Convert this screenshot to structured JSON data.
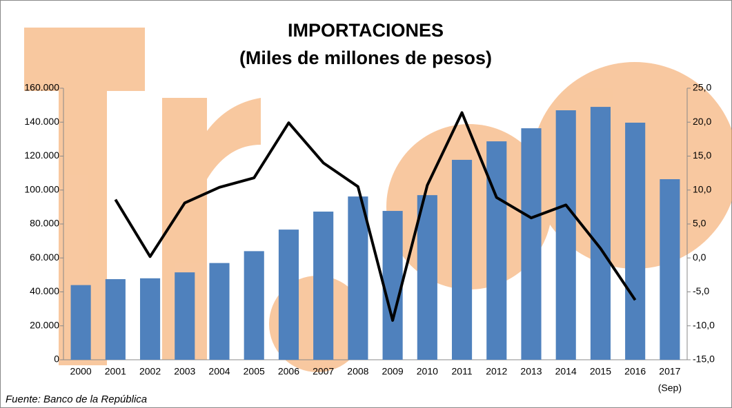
{
  "chart_data": {
    "type": "bar-line",
    "title": "IMPORTACIONES",
    "subtitle": "(Miles de millones de pesos)",
    "source": "Fuente: Banco de la República",
    "categories": [
      "2000",
      "2001",
      "2002",
      "2003",
      "2004",
      "2005",
      "2006",
      "2007",
      "2008",
      "2009",
      "2010",
      "2011",
      "2012",
      "2013",
      "2014",
      "2015",
      "2016",
      "2017"
    ],
    "category_note": "(Sep)",
    "series": [
      {
        "type": "bar",
        "color": "#4f81bd",
        "axis": "y",
        "values": [
          44000,
          47500,
          48000,
          51500,
          57000,
          64000,
          76700,
          87300,
          96200,
          87700,
          97000,
          117800,
          128700,
          136400,
          147000,
          149000,
          139700,
          106400
        ]
      },
      {
        "type": "line",
        "color": "#000000",
        "axis": "y2",
        "values": [
          null,
          8.6,
          0.2,
          8.1,
          10.4,
          11.8,
          19.9,
          14.0,
          10.5,
          -9.2,
          10.7,
          21.4,
          8.9,
          5.9,
          7.8,
          1.4,
          -6.2,
          null
        ]
      }
    ],
    "ylim": [
      0,
      160000
    ],
    "yticks": [
      0,
      {
        "value": 20000,
        "label": "20.000"
      },
      {
        "value": 40000,
        "label": "40.000"
      },
      {
        "value": 60000,
        "label": "60.000"
      },
      {
        "value": 80000,
        "label": "80.000"
      },
      {
        "value": 100000,
        "label": "100.000"
      },
      {
        "value": 120000,
        "label": "120.000"
      },
      {
        "value": 140000,
        "label": "140.000"
      },
      {
        "value": 160000,
        "label": "160.000"
      }
    ],
    "y2lim": [
      -15,
      25
    ],
    "y2ticks": [
      {
        "value": -15,
        "label": "-15,0"
      },
      {
        "value": -10,
        "label": "-10,0"
      },
      {
        "value": -5,
        "label": "-5,0"
      },
      {
        "value": 0,
        "label": "0,0"
      },
      {
        "value": 5,
        "label": "5,0"
      },
      {
        "value": 10,
        "label": "10,0"
      },
      {
        "value": 15,
        "label": "15,0"
      },
      {
        "value": 20,
        "label": "20,0"
      },
      {
        "value": 25,
        "label": "25,0"
      }
    ]
  }
}
